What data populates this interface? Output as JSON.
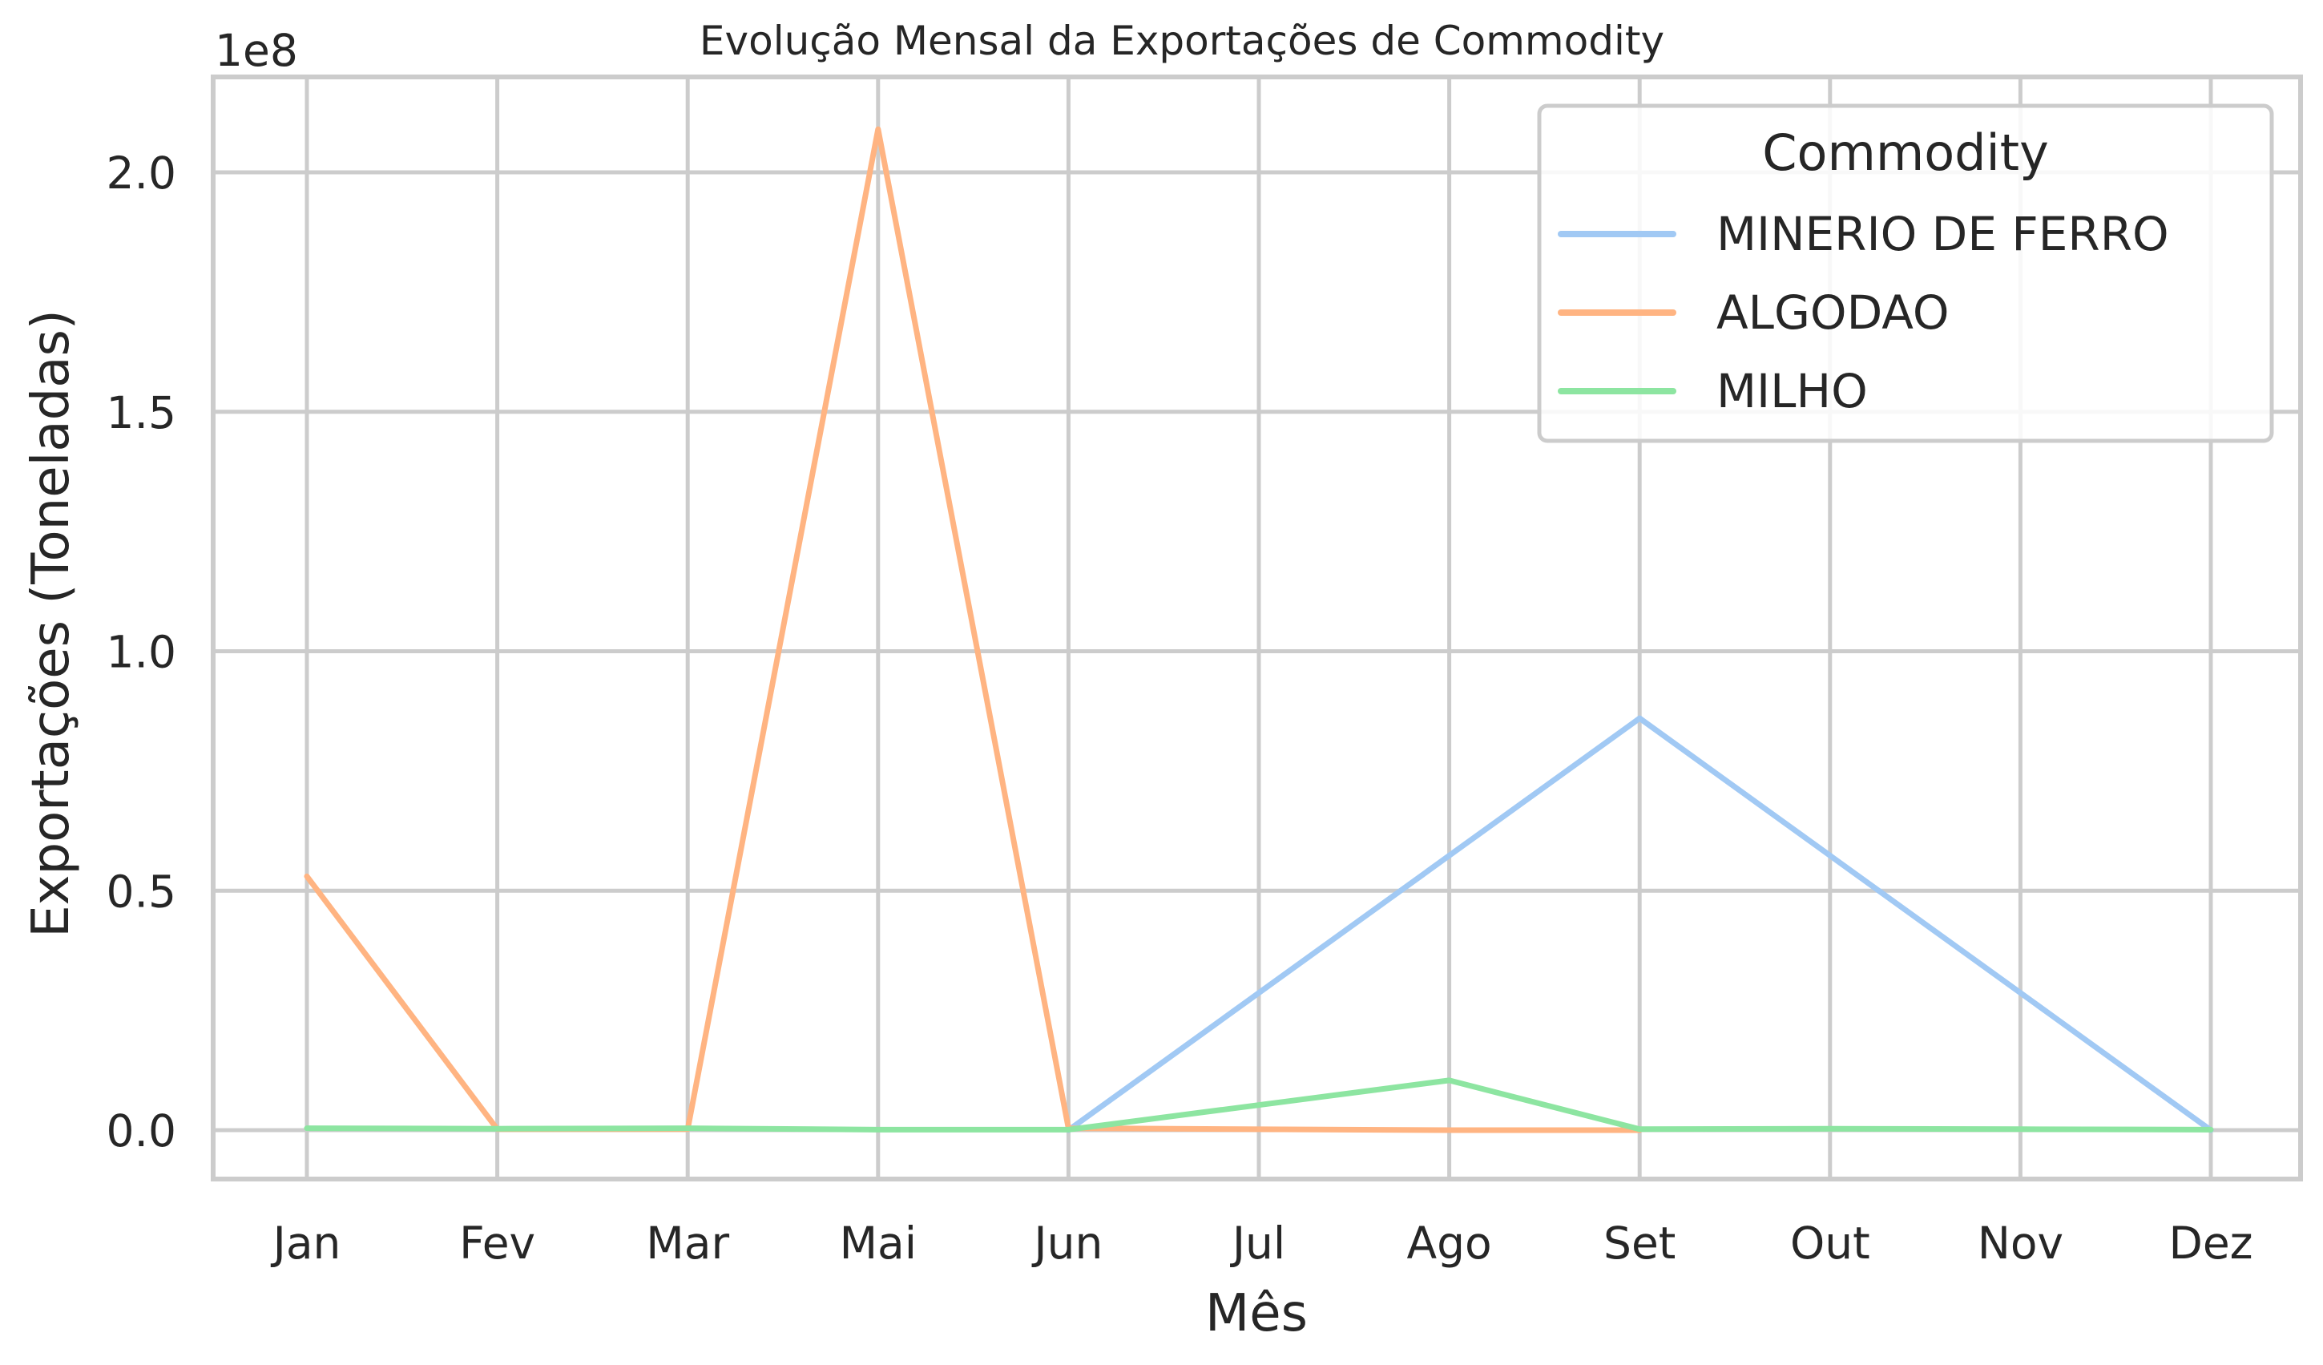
{
  "chart_data": {
    "type": "line",
    "title": "Evolução Mensal da Exportações de Commodity",
    "xlabel": "Mês",
    "ylabel": "Exportações (Toneladas)",
    "y_offset_label": "1e8",
    "categories": [
      "Jan",
      "Fev",
      "Mar",
      "Mai",
      "Jun",
      "Jul",
      "Ago",
      "Set",
      "Out",
      "Nov",
      "Dez"
    ],
    "y_ticks": [
      0.0,
      0.5,
      1.0,
      1.5,
      2.0
    ],
    "y_tick_labels": [
      "0.0",
      "0.5",
      "1.0",
      "1.5",
      "2.0"
    ],
    "ylim": [
      -0.105,
      2.19
    ],
    "y_scale": 100000000.0,
    "grid": true,
    "legend": {
      "title": "Commodity",
      "placement": "top-right"
    },
    "series": [
      {
        "name": "MINERIO DE FERRO",
        "color": "#a1c9f4",
        "points": [
          [
            "Jun",
            0.0
          ],
          [
            "Set",
            0.86
          ],
          [
            "Dez",
            0.0
          ]
        ]
      },
      {
        "name": "ALGODAO",
        "color": "#ffb482",
        "points": [
          [
            "Jan",
            0.53
          ],
          [
            "Fev",
            0.002
          ],
          [
            "Mar",
            0.002
          ],
          [
            "Mai",
            2.09
          ],
          [
            "Jun",
            0.004
          ],
          [
            "Ago",
            0.0
          ],
          [
            "Set",
            0.0
          ]
        ]
      },
      {
        "name": "MILHO",
        "color": "#8de5a1",
        "points": [
          [
            "Jan",
            0.004
          ],
          [
            "Fev",
            0.003
          ],
          [
            "Mar",
            0.004
          ],
          [
            "Mai",
            0.001
          ],
          [
            "Jun",
            0.001
          ],
          [
            "Ago",
            0.104
          ],
          [
            "Set",
            0.002
          ],
          [
            "Out",
            0.003
          ],
          [
            "Nov",
            0.002
          ],
          [
            "Dez",
            0.001
          ]
        ]
      }
    ]
  }
}
